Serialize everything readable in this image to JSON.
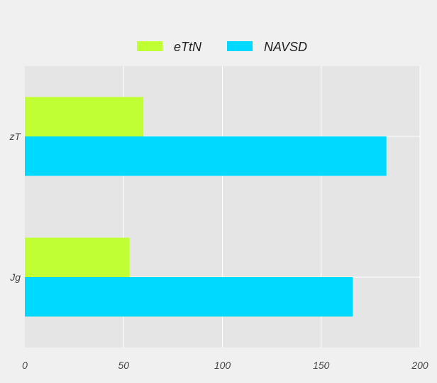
{
  "chart_data": {
    "type": "bar",
    "orientation": "horizontal",
    "categories": [
      "zT",
      "Jg"
    ],
    "series": [
      {
        "name": "eTtN",
        "values": [
          60,
          53
        ],
        "color": "#bfff33"
      },
      {
        "name": "NAVSD",
        "values": [
          183,
          166
        ],
        "color": "#00d9ff"
      }
    ],
    "xlim": [
      0,
      200
    ],
    "xticks": [
      "0",
      "50",
      "100",
      "150",
      "200"
    ],
    "xticks_values": [
      0,
      50,
      100,
      150,
      200
    ],
    "title": "",
    "xlabel": "",
    "ylabel": "",
    "grid": true,
    "legend_position": "top-center",
    "plot_background": "#e5e5e5",
    "page_background": "#f0f0f0"
  }
}
